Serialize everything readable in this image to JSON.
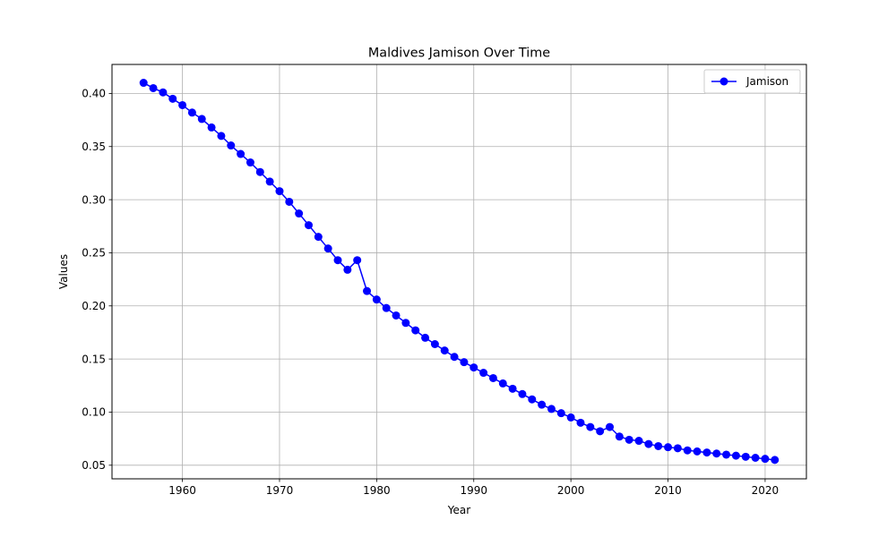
{
  "chart_data": {
    "type": "line",
    "title": "Maldives Jamison Over Time",
    "xlabel": "Year",
    "ylabel": "Values",
    "xlim": [
      1952.75,
      2024.25
    ],
    "ylim": [
      0.0372,
      0.4273
    ],
    "x_ticks": [
      1960,
      1970,
      1980,
      1990,
      2000,
      2010,
      2020
    ],
    "y_ticks": [
      0.05,
      0.1,
      0.15,
      0.2,
      0.25,
      0.3,
      0.35,
      0.4
    ],
    "y_tick_labels": [
      "0.05",
      "0.10",
      "0.15",
      "0.20",
      "0.25",
      "0.30",
      "0.35",
      "0.40"
    ],
    "grid": true,
    "legend_position": "top-right",
    "series": [
      {
        "name": "Jamison",
        "color": "#0000ff",
        "marker": "circle",
        "x": [
          1956,
          1957,
          1958,
          1959,
          1960,
          1961,
          1962,
          1963,
          1964,
          1965,
          1966,
          1967,
          1968,
          1969,
          1970,
          1971,
          1972,
          1973,
          1974,
          1975,
          1976,
          1977,
          1978,
          1979,
          1980,
          1981,
          1982,
          1983,
          1984,
          1985,
          1986,
          1987,
          1988,
          1989,
          1990,
          1991,
          1992,
          1993,
          1994,
          1995,
          1996,
          1997,
          1998,
          1999,
          2000,
          2001,
          2002,
          2003,
          2004,
          2005,
          2006,
          2007,
          2008,
          2009,
          2010,
          2011,
          2012,
          2013,
          2014,
          2015,
          2016,
          2017,
          2018,
          2019,
          2020,
          2021
        ],
        "values": [
          0.41,
          0.405,
          0.401,
          0.395,
          0.389,
          0.382,
          0.376,
          0.368,
          0.36,
          0.351,
          0.343,
          0.335,
          0.326,
          0.317,
          0.308,
          0.298,
          0.287,
          0.276,
          0.265,
          0.254,
          0.243,
          0.234,
          0.243,
          0.214,
          0.206,
          0.198,
          0.191,
          0.184,
          0.177,
          0.17,
          0.164,
          0.158,
          0.152,
          0.147,
          0.142,
          0.137,
          0.132,
          0.127,
          0.122,
          0.117,
          0.112,
          0.107,
          0.103,
          0.099,
          0.095,
          0.09,
          0.086,
          0.082,
          0.086,
          0.077,
          0.074,
          0.073,
          0.07,
          0.068,
          0.067,
          0.066,
          0.064,
          0.063,
          0.062,
          0.061,
          0.06,
          0.059,
          0.058,
          0.057,
          0.056,
          0.055
        ]
      }
    ]
  }
}
